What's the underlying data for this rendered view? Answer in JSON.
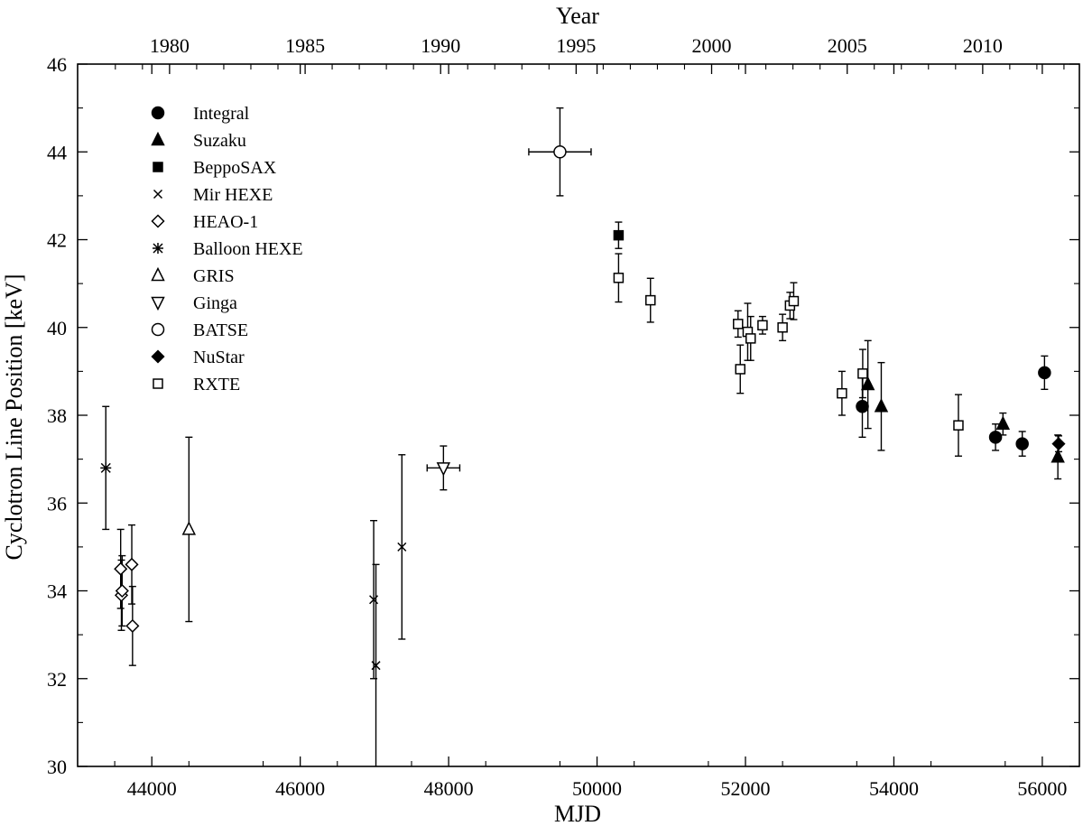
{
  "chart_data": {
    "type": "scatter",
    "title": "",
    "xlabel": "MJD",
    "ylabel": "Cyclotron Line Position [keV]",
    "top_xlabel": "Year",
    "xlim": [
      43000,
      56500
    ],
    "ylim": [
      30,
      46
    ],
    "x_ticks": [
      44000,
      46000,
      48000,
      50000,
      52000,
      54000,
      56000
    ],
    "x_tick_labels": [
      "44000",
      "46000",
      "48000",
      "50000",
      "52000",
      "54000",
      "56000"
    ],
    "y_ticks": [
      30,
      32,
      34,
      36,
      38,
      40,
      42,
      44,
      46
    ],
    "y_tick_labels": [
      "30",
      "32",
      "34",
      "36",
      "38",
      "40",
      "42",
      "44",
      "46"
    ],
    "top_ticks": [
      {
        "year": "1980",
        "mjd": 44239
      },
      {
        "year": "1985",
        "mjd": 46066
      },
      {
        "year": "1990",
        "mjd": 47892
      },
      {
        "year": "1995",
        "mjd": 49718
      },
      {
        "year": "2000",
        "mjd": 51544
      },
      {
        "year": "2005",
        "mjd": 53371
      },
      {
        "year": "2010",
        "mjd": 55197
      }
    ],
    "grid": false,
    "legend_position": "top-left",
    "series": [
      {
        "name": "Integral",
        "marker": "circle-filled",
        "points": [
          {
            "x": 53575,
            "y": 38.2,
            "yerr": 0.7
          },
          {
            "x": 55370,
            "y": 37.5,
            "yerr": 0.3
          },
          {
            "x": 55730,
            "y": 37.35,
            "yerr": 0.28
          },
          {
            "x": 56030,
            "y": 38.97,
            "yerr": 0.38
          }
        ]
      },
      {
        "name": "Suzaku",
        "marker": "triangle-up-filled",
        "points": [
          {
            "x": 53650,
            "y": 38.7,
            "yerr": 1.0
          },
          {
            "x": 53830,
            "y": 38.2,
            "yerr": 1.0
          },
          {
            "x": 55470,
            "y": 37.8,
            "yerr": 0.25
          },
          {
            "x": 56210,
            "y": 37.05,
            "yerr": 0.5
          }
        ]
      },
      {
        "name": "BeppoSAX",
        "marker": "square-filled",
        "points": [
          {
            "x": 50290,
            "y": 42.1,
            "yerr": 0.3
          }
        ]
      },
      {
        "name": "Mir HEXE",
        "marker": "cross",
        "points": [
          {
            "x": 46990,
            "y": 33.8,
            "yerr": 1.8
          },
          {
            "x": 47020,
            "y": 32.3,
            "yerr": 2.3
          },
          {
            "x": 47370,
            "y": 35.0,
            "yerr": 2.1
          }
        ]
      },
      {
        "name": "HEAO-1",
        "marker": "diamond-open",
        "points": [
          {
            "x": 43580,
            "y": 34.5,
            "yerr": 0.9
          },
          {
            "x": 43590,
            "y": 33.9,
            "yerr": 0.8
          },
          {
            "x": 43600,
            "y": 34.0,
            "yerr": 0.8
          },
          {
            "x": 43730,
            "y": 34.6,
            "yerr": 0.9
          },
          {
            "x": 43740,
            "y": 33.2,
            "yerr": 0.9
          }
        ]
      },
      {
        "name": "Balloon HEXE",
        "marker": "asterisk",
        "points": [
          {
            "x": 43380,
            "y": 36.8,
            "yerr": 1.4
          }
        ]
      },
      {
        "name": "GRIS",
        "marker": "triangle-up-open",
        "points": [
          {
            "x": 44500,
            "y": 35.4,
            "yerr": 2.1
          }
        ]
      },
      {
        "name": "Ginga",
        "marker": "triangle-down-open",
        "points": [
          {
            "x": 47930,
            "y": 36.8,
            "yerr": 0.5,
            "xerr": 220
          }
        ]
      },
      {
        "name": "BATSE",
        "marker": "circle-open",
        "points": [
          {
            "x": 49500,
            "y": 44.0,
            "yerr": 1.0,
            "xerr": 420
          }
        ]
      },
      {
        "name": "NuStar",
        "marker": "diamond-filled",
        "points": [
          {
            "x": 56220,
            "y": 37.35,
            "yerr": 0.18
          }
        ]
      },
      {
        "name": "RXTE",
        "marker": "square-open",
        "points": [
          {
            "x": 50290,
            "y": 41.13,
            "yerr": 0.55
          },
          {
            "x": 50720,
            "y": 40.62,
            "yerr": 0.5
          },
          {
            "x": 51900,
            "y": 40.08,
            "yerr": 0.3
          },
          {
            "x": 51930,
            "y": 39.05,
            "yerr": 0.55
          },
          {
            "x": 52030,
            "y": 39.9,
            "yerr": 0.65
          },
          {
            "x": 52070,
            "y": 39.75,
            "yerr": 0.5
          },
          {
            "x": 52230,
            "y": 40.05,
            "yerr": 0.2
          },
          {
            "x": 52500,
            "y": 40.0,
            "yerr": 0.3
          },
          {
            "x": 52600,
            "y": 40.5,
            "yerr": 0.3
          },
          {
            "x": 52650,
            "y": 40.6,
            "yerr": 0.42
          },
          {
            "x": 53300,
            "y": 38.5,
            "yerr": 0.5
          },
          {
            "x": 53580,
            "y": 38.95,
            "yerr": 0.55
          },
          {
            "x": 54870,
            "y": 37.77,
            "yerr": 0.7
          }
        ]
      }
    ]
  }
}
